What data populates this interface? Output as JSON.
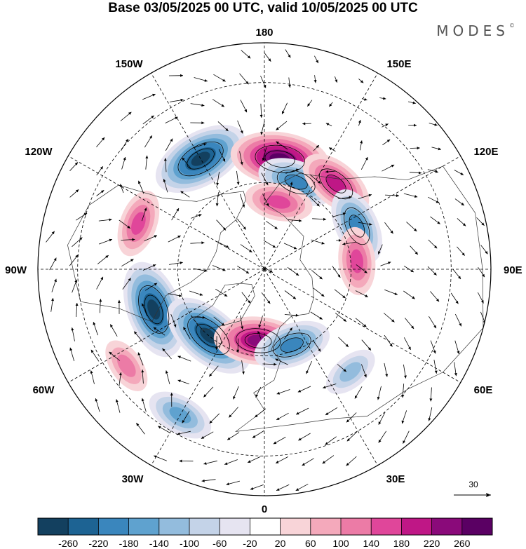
{
  "title": "Base 03/05/2025 00 UTC, valid 10/05/2025 00 UTC",
  "brand": {
    "name": "MODES",
    "mark": "©"
  },
  "longitude_labels": {
    "top": "180",
    "bottom": "0",
    "left": "90W",
    "right": "90E",
    "upper_left": "150W",
    "upper_right": "150E",
    "mid_upper_left": "120W",
    "mid_upper_right": "120E",
    "mid_lower_left": "60W",
    "mid_lower_right": "60E",
    "lower_left": "30W",
    "lower_right": "30E"
  },
  "reference_vector": {
    "label": "30"
  },
  "colorbar": {
    "ticks": [
      "-260",
      "-220",
      "-180",
      "-140",
      "-100",
      "-60",
      "-20",
      "20",
      "60",
      "100",
      "140",
      "180",
      "220",
      "260"
    ],
    "colors": [
      "#13405f",
      "#1d6393",
      "#3a86bd",
      "#5fa2cf",
      "#93bcdd",
      "#c4d3e8",
      "#e6e4f1",
      "#ffffff",
      "#f8d4d8",
      "#f4a9bb",
      "#ec7ba6",
      "#e0469a",
      "#bf1786",
      "#8a0a7a",
      "#5a0063"
    ]
  },
  "anomaly_centers": [
    {
      "label": "negative",
      "value": -260,
      "lon": -150,
      "lat": 47
    },
    {
      "label": "positive",
      "value": 260,
      "lon": 172,
      "lat": 52
    },
    {
      "label": "negative",
      "value": -180,
      "lon": 160,
      "lat": 58
    },
    {
      "label": "positive",
      "value": 180,
      "lon": 140,
      "lat": 52
    },
    {
      "label": "positive",
      "value": 140,
      "lon": 168,
      "lat": 66
    },
    {
      "label": "negative",
      "value": -180,
      "lon": 115,
      "lat": 55
    },
    {
      "label": "positive",
      "value": 140,
      "lon": 95,
      "lat": 58
    },
    {
      "label": "positive",
      "value": 140,
      "lon": -110,
      "lat": 45
    },
    {
      "label": "negative",
      "value": -260,
      "lon": -70,
      "lat": 50
    },
    {
      "label": "negative",
      "value": -260,
      "lon": -40,
      "lat": 60
    },
    {
      "label": "positive",
      "value": 220,
      "lon": -5,
      "lat": 65
    },
    {
      "label": "negative",
      "value": -180,
      "lon": 20,
      "lat": 62
    },
    {
      "label": "positive",
      "value": 100,
      "lon": -55,
      "lat": 35
    },
    {
      "label": "negative",
      "value": -140,
      "lon": -30,
      "lat": 35
    },
    {
      "label": "negative",
      "value": -100,
      "lon": 40,
      "lat": 45
    }
  ]
}
